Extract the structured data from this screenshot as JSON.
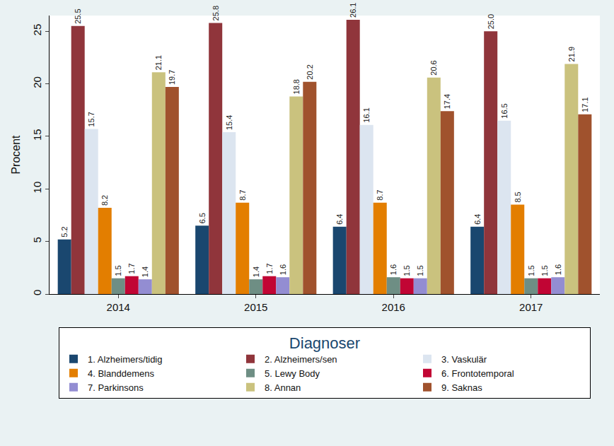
{
  "chart_data": {
    "type": "bar",
    "y_label": "Procent",
    "legend_title": "Diagnoser",
    "legend": "bottom",
    "grid": false,
    "data_labels": true,
    "categories": [
      "2014",
      "2015",
      "2016",
      "2017"
    ],
    "ylim": [
      0,
      26.5
    ],
    "yticks": [
      0,
      5,
      10,
      15,
      20,
      25
    ],
    "series": [
      {
        "name": "1. Alzheimers/tidig",
        "color": "#1a476f",
        "values": [
          5.2,
          6.5,
          6.4,
          6.4
        ]
      },
      {
        "name": "2. Alzheimers/sen",
        "color": "#90353b",
        "values": [
          25.5,
          25.8,
          26.1,
          25.0
        ],
        "value_labels": [
          "25.5",
          "25.8",
          "26.1",
          "25.0"
        ]
      },
      {
        "name": "3. Vaskulär",
        "color": "#dce5f0",
        "values": [
          15.7,
          15.4,
          16.1,
          16.5
        ]
      },
      {
        "name": "4. Blanddemens",
        "color": "#e37e00",
        "values": [
          8.2,
          8.7,
          8.7,
          8.5
        ]
      },
      {
        "name": "5. Lewy Body",
        "color": "#6e8e84",
        "values": [
          1.5,
          1.4,
          1.6,
          1.5
        ]
      },
      {
        "name": "6. Frontotemporal",
        "color": "#c10534",
        "values": [
          1.7,
          1.7,
          1.5,
          1.5
        ]
      },
      {
        "name": "7. Parkinsons",
        "color": "#938dd2",
        "values": [
          1.4,
          1.6,
          1.5,
          1.6
        ]
      },
      {
        "name": "8. Annan",
        "color": "#cac27e",
        "values": [
          21.1,
          18.8,
          20.6,
          21.9
        ]
      },
      {
        "name": "9. Saknas",
        "color": "#a0522d",
        "values": [
          19.7,
          20.2,
          17.4,
          17.1
        ]
      }
    ]
  }
}
